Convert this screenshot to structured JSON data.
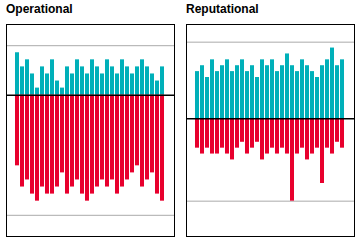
{
  "chart_data": [
    {
      "type": "bar",
      "title": "Operational",
      "categories": [
        null,
        null,
        null,
        null,
        null,
        null,
        null,
        null,
        null,
        null,
        null,
        null,
        null,
        null,
        null,
        null,
        null,
        null,
        null,
        null,
        null,
        null,
        null,
        null,
        null,
        null,
        null,
        null,
        null,
        null
      ],
      "series": [
        {
          "color": "#00b0b9",
          "values": [
            6,
            4,
            5,
            3,
            1,
            4,
            3,
            5,
            2,
            1,
            4,
            3,
            5,
            4,
            3,
            5,
            4,
            3,
            5,
            4,
            3,
            5,
            4,
            3,
            4,
            5,
            4,
            3,
            2,
            4
          ]
        },
        {
          "color": "#e8002d",
          "values": [
            -10,
            -13,
            -12,
            -14,
            -15,
            -13,
            -14,
            -14,
            -13,
            -11,
            -14,
            -13,
            -12,
            -14,
            -15,
            -14,
            -13,
            -12,
            -13,
            -12,
            -14,
            -13,
            -12,
            -11,
            -10,
            -13,
            -12,
            -11,
            -14,
            -15
          ]
        }
      ],
      "ylim": [
        -20,
        10
      ],
      "yticks": [
        -17,
        7
      ],
      "grid": true,
      "tick_labels": false
    },
    {
      "type": "bar",
      "title": "Reputational",
      "categories": [
        null,
        null,
        null,
        null,
        null,
        null,
        null,
        null,
        null,
        null,
        null,
        null,
        null,
        null,
        null,
        null,
        null,
        null,
        null,
        null,
        null,
        null,
        null,
        null,
        null,
        null,
        null,
        null,
        null,
        null
      ],
      "series": [
        {
          "color": "#00b0b9",
          "values": [
            8,
            9,
            7,
            10,
            8,
            9,
            10,
            8,
            9,
            10,
            8,
            9,
            7,
            10,
            9,
            10,
            8,
            9,
            11,
            9,
            8,
            10,
            9,
            8,
            7,
            9,
            10,
            12,
            9,
            10
          ]
        },
        {
          "color": "#e8002d",
          "values": [
            -5,
            -6,
            -5,
            -6,
            -6,
            -5,
            -6,
            -7,
            -5,
            -4,
            -6,
            -5,
            -4,
            -7,
            -6,
            -5,
            -6,
            -5,
            -6,
            -14,
            -6,
            -5,
            -7,
            -6,
            -5,
            -11,
            -5,
            -6,
            -4,
            -5
          ]
        }
      ],
      "ylim": [
        -20,
        16
      ],
      "yticks": [
        -14,
        13
      ],
      "grid": true,
      "tick_labels": false
    }
  ]
}
